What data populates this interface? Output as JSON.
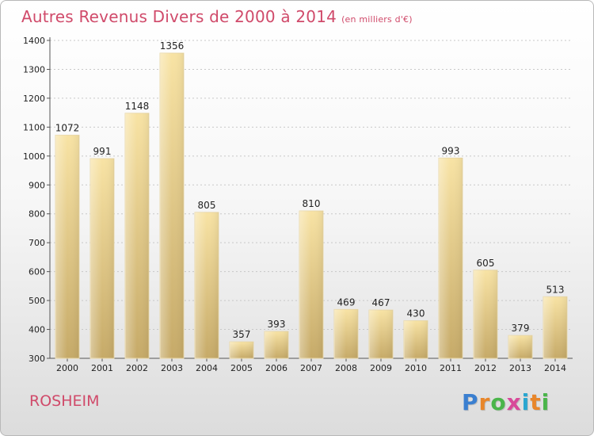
{
  "title": "Autres Revenus Divers de 2000 à 2014",
  "subtitle": "(en milliers d'€)",
  "location": "ROSHEIM",
  "logo": {
    "text": "Proxiti",
    "letter_colors": [
      "#3a7fd0",
      "#e8862a",
      "#4ab54a",
      "#d84a9a",
      "#2aa6d0",
      "#e8862a",
      "#4ab54a"
    ]
  },
  "colors": {
    "title": "#d04a6a",
    "bar_light": "#f6de9a",
    "bar_dark": "#c9ae6c",
    "grid": "#c8c8c8",
    "axis_text": "#222222"
  },
  "chart_data": {
    "type": "bar",
    "categories": [
      "2000",
      "2001",
      "2002",
      "2003",
      "2004",
      "2005",
      "2006",
      "2007",
      "2008",
      "2009",
      "2010",
      "2011",
      "2012",
      "2013",
      "2014"
    ],
    "values": [
      1072,
      991,
      1148,
      1356,
      805,
      357,
      393,
      810,
      469,
      467,
      430,
      993,
      605,
      379,
      513
    ],
    "yticks": [
      300,
      400,
      500,
      600,
      700,
      800,
      900,
      1000,
      1100,
      1200,
      1300,
      1400
    ],
    "ylim": [
      300,
      1400
    ],
    "grid": true,
    "xlabel": "",
    "ylabel": ""
  }
}
